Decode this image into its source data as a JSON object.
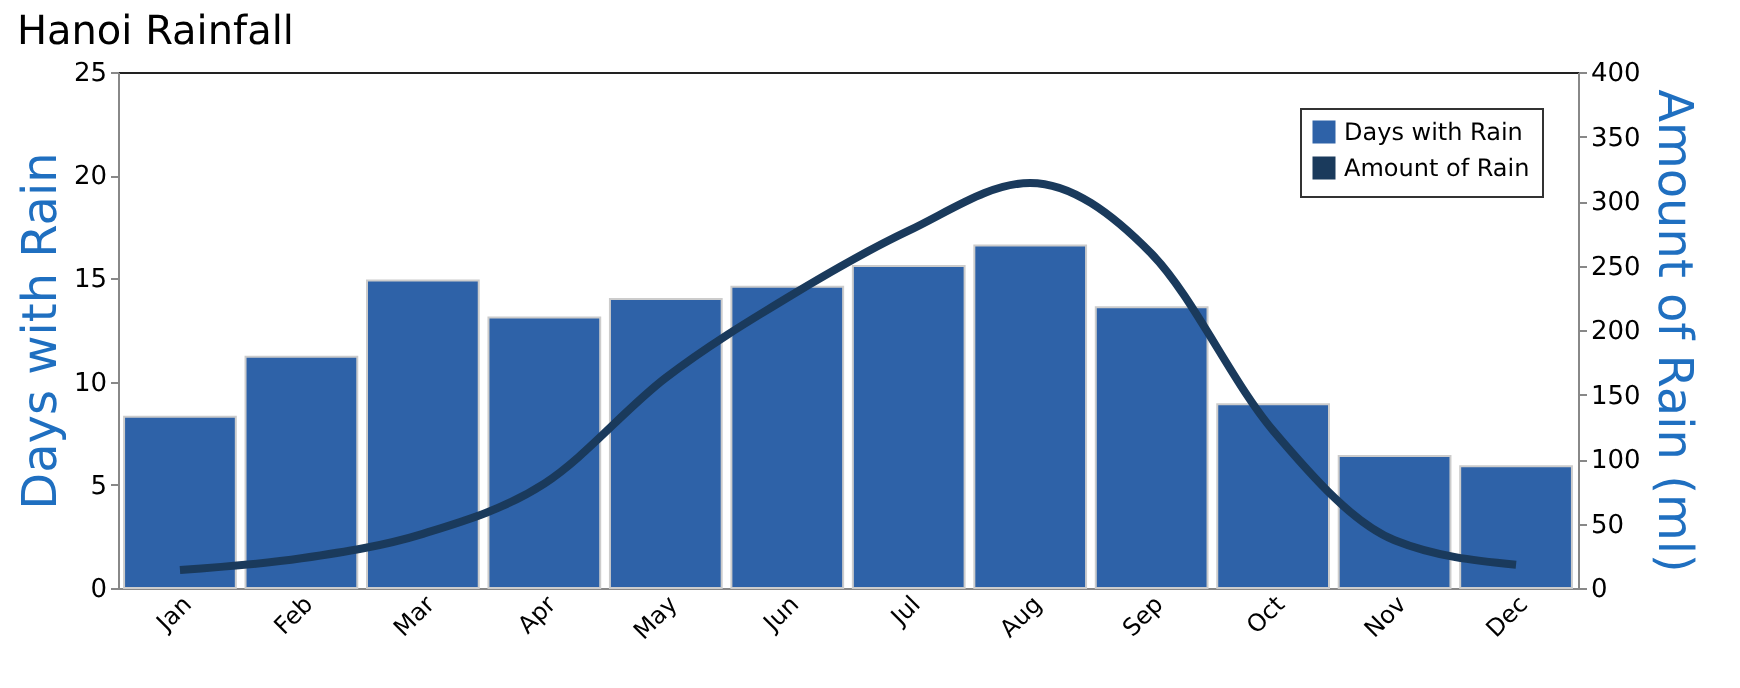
{
  "chart_data": {
    "type": "bar",
    "title": "Hanoi Rainfall",
    "ylabel": "Days with Rain",
    "y2label": "Amount of Rain (ml)",
    "categories": [
      "Jan",
      "Feb",
      "Mar",
      "Apr",
      "May",
      "Jun",
      "Jul",
      "Aug",
      "Sep",
      "Oct",
      "Nov",
      "Dec"
    ],
    "series": [
      {
        "name": "Days with Rain",
        "color": "#2e62a8",
        "values": [
          8.3,
          11.2,
          14.9,
          13.1,
          14.0,
          14.6,
          15.6,
          16.6,
          13.6,
          8.9,
          6.4,
          5.9
        ]
      },
      {
        "name": "Amount of Rain",
        "type": "line",
        "axis": "y2",
        "color": "#1a3a5c",
        "values": [
          14,
          23,
          42,
          81,
          163,
          225,
          277,
          314,
          259,
          122,
          37,
          18
        ]
      }
    ],
    "ylim": [
      0,
      25
    ],
    "yticks": [
      0,
      5,
      10,
      15,
      20,
      25
    ],
    "y2lim": [
      0,
      400
    ],
    "y2ticks": [
      0,
      50,
      100,
      150,
      200,
      250,
      300,
      350,
      400
    ],
    "legend": "top right",
    "grid": false,
    "marker": "none",
    "line_style": "solid"
  }
}
